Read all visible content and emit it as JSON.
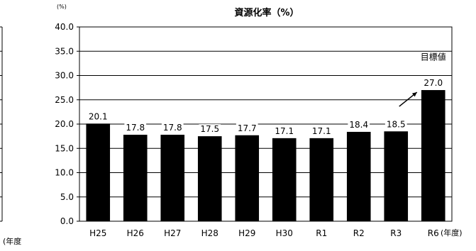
{
  "chart_data": {
    "type": "bar",
    "title": "資源化率（%）",
    "y_unit": "(%)",
    "x_unit": "(年度)",
    "left_fragment_unit": "(年度",
    "categories": [
      "H25",
      "H26",
      "H27",
      "H28",
      "H29",
      "H30",
      "R1",
      "R2",
      "R3",
      "R6"
    ],
    "values": [
      20.1,
      17.8,
      17.8,
      17.5,
      17.7,
      17.1,
      17.1,
      18.4,
      18.5,
      27.0
    ],
    "value_labels": [
      "20.1",
      "17.8",
      "17.8",
      "17.5",
      "17.7",
      "17.1",
      "17.1",
      "18.4",
      "18.5",
      "27.0"
    ],
    "ylim": [
      0,
      40
    ],
    "y_ticks": [
      "0.0",
      "5.0",
      "10.0",
      "15.0",
      "20.0",
      "25.0",
      "30.0",
      "35.0",
      "40.0"
    ],
    "y_tick_values": [
      0,
      5,
      10,
      15,
      20,
      25,
      30,
      35,
      40
    ],
    "grid": true,
    "bar_color": "#000000",
    "annotation": {
      "text": "目標値",
      "target_category": "R6"
    }
  }
}
